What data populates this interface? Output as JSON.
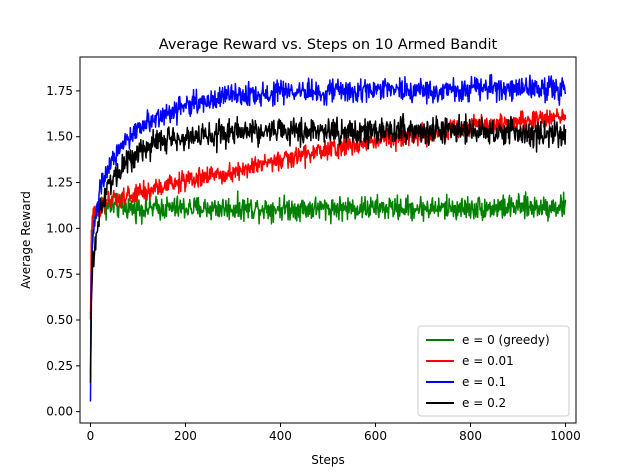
{
  "chart_data": {
    "type": "line",
    "title": "Average Reward vs. Steps on 10 Armed Bandit",
    "xlabel": "Steps",
    "ylabel": "Average Reward",
    "xlim": [
      -22,
      1022
    ],
    "ylim": [
      -0.062,
      1.935
    ],
    "xticks": [
      0,
      200,
      400,
      600,
      800,
      1000
    ],
    "yticks": [
      0.0,
      0.25,
      0.5,
      0.75,
      1.0,
      1.25,
      1.5,
      1.75
    ],
    "ytick_labels": [
      "0.00",
      "0.25",
      "0.50",
      "0.75",
      "1.00",
      "1.25",
      "1.50",
      "1.75"
    ],
    "grid": false,
    "legend_position": "lower-right",
    "series": [
      {
        "name": "e = 0 (greedy)",
        "color": "#008000",
        "noise": 0.04,
        "x": [
          0,
          2,
          5,
          10,
          20,
          40,
          100,
          200,
          400,
          600,
          800,
          1000
        ],
        "values": [
          0.2,
          0.9,
          1.05,
          1.1,
          1.12,
          1.12,
          1.11,
          1.11,
          1.11,
          1.11,
          1.11,
          1.12
        ]
      },
      {
        "name": "e = 0.01",
        "color": "#ff0000",
        "noise": 0.035,
        "x": [
          0,
          2,
          5,
          10,
          20,
          50,
          100,
          200,
          300,
          400,
          500,
          600,
          700,
          800,
          900,
          1000
        ],
        "values": [
          0.5,
          0.95,
          1.08,
          1.1,
          1.12,
          1.15,
          1.19,
          1.26,
          1.31,
          1.37,
          1.43,
          1.48,
          1.51,
          1.55,
          1.58,
          1.62
        ]
      },
      {
        "name": "e = 0.1",
        "color": "#0000ff",
        "noise": 0.04,
        "x": [
          0,
          2,
          5,
          10,
          20,
          40,
          70,
          100,
          150,
          200,
          250,
          300,
          400,
          500,
          600,
          800,
          1000
        ],
        "values": [
          0.05,
          0.75,
          0.95,
          1.05,
          1.2,
          1.35,
          1.45,
          1.55,
          1.62,
          1.67,
          1.7,
          1.72,
          1.74,
          1.75,
          1.75,
          1.76,
          1.76
        ]
      },
      {
        "name": "e = 0.2",
        "color": "#000000",
        "noise": 0.045,
        "x": [
          0,
          2,
          5,
          10,
          20,
          40,
          70,
          100,
          150,
          200,
          300,
          400,
          600,
          800,
          1000
        ],
        "values": [
          0.15,
          0.6,
          0.8,
          0.92,
          1.1,
          1.25,
          1.35,
          1.42,
          1.48,
          1.5,
          1.52,
          1.53,
          1.53,
          1.54,
          1.5
        ]
      }
    ]
  }
}
